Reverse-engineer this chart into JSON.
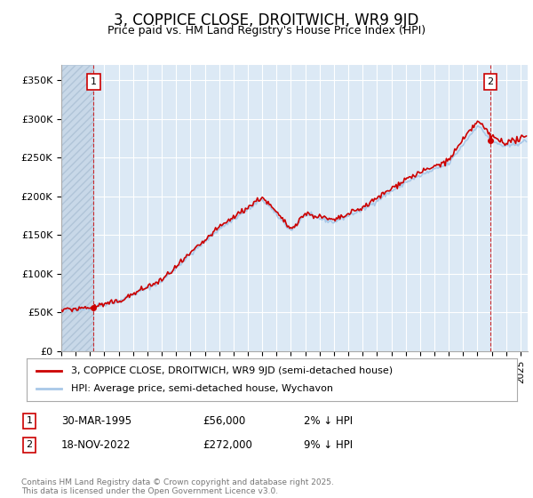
{
  "title": "3, COPPICE CLOSE, DROITWICH, WR9 9JD",
  "subtitle": "Price paid vs. HM Land Registry's House Price Index (HPI)",
  "ylabel_ticks": [
    "£0",
    "£50K",
    "£100K",
    "£150K",
    "£200K",
    "£250K",
    "£300K",
    "£350K"
  ],
  "ytick_values": [
    0,
    50000,
    100000,
    150000,
    200000,
    250000,
    300000,
    350000
  ],
  "ylim": [
    0,
    370000
  ],
  "xlim_start": 1993.0,
  "xlim_end": 2025.5,
  "hpi_color": "#a8c8e8",
  "price_color": "#cc0000",
  "point1_x": 1995.25,
  "point1_y": 56000,
  "point2_x": 2022.9,
  "point2_y": 272000,
  "annotation1_label": "1",
  "annotation2_label": "2",
  "legend_property_label": "3, COPPICE CLOSE, DROITWICH, WR9 9JD (semi-detached house)",
  "legend_hpi_label": "HPI: Average price, semi-detached house, Wychavon",
  "table_row1": [
    "1",
    "30-MAR-1995",
    "£56,000",
    "2% ↓ HPI"
  ],
  "table_row2": [
    "2",
    "18-NOV-2022",
    "£272,000",
    "9% ↓ HPI"
  ],
  "footer": "Contains HM Land Registry data © Crown copyright and database right 2025.\nThis data is licensed under the Open Government Licence v3.0.",
  "background_color": "#ffffff",
  "plot_bg_color": "#dce9f5",
  "grid_color": "#ffffff",
  "title_fontsize": 12,
  "subtitle_fontsize": 9,
  "tick_fontsize": 7.5
}
